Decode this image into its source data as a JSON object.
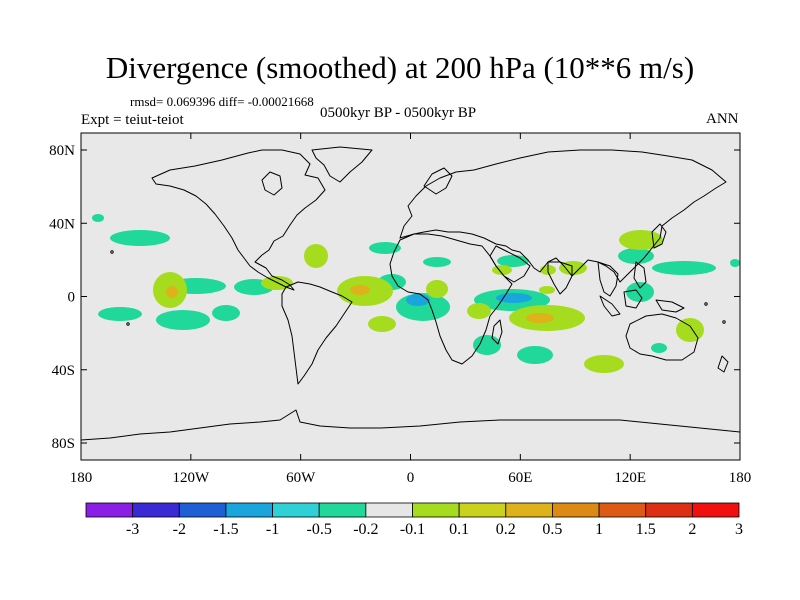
{
  "title": "Divergence (smoothed) at 200 hPa (10**6 m/s)",
  "stats_line": "rmsd= 0.069396 diff= -0.00021668",
  "left_label": "Expt = teiut-teiot",
  "center_label": "0500kyr BP - 0500kyr BP",
  "right_label": "ANN",
  "lon_ticks": [
    "180",
    "120W",
    "60W",
    "0",
    "60E",
    "120E",
    "180"
  ],
  "lat_ticks": [
    "80N",
    "40N",
    "0",
    "40S",
    "80S"
  ],
  "colorbar": {
    "colors": [
      "#8a1ee6",
      "#3a2ad6",
      "#1e5fd6",
      "#1aa6dc",
      "#2fd0d6",
      "#1fd89a",
      "#e6e6e6",
      "#a6dc1e",
      "#cad21e",
      "#ddb21a",
      "#dd8a14",
      "#dd5a14",
      "#dc2f14",
      "#f01010"
    ],
    "labels": [
      "-3",
      "-2",
      "-1.5",
      "-1",
      "-0.5",
      "-0.2",
      "-0.1",
      "0.1",
      "0.2",
      "0.5",
      "1",
      "1.5",
      "2",
      "3"
    ]
  },
  "colors": {
    "background": "#e8e8e8",
    "positive": "#a6dc1e",
    "strong_positive": "#ddb21a",
    "negative": "#1fd89a",
    "strong_negative": "#1aa6dc"
  }
}
